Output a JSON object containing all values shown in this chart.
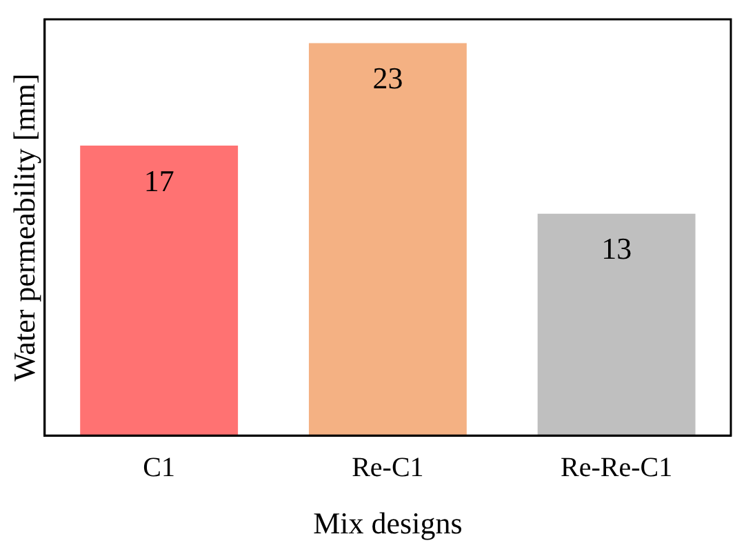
{
  "chart_data": {
    "type": "bar",
    "xlabel": "Mix designs",
    "ylabel": "Water permeability [mm]",
    "categories": [
      "C1",
      "Re-C1",
      "Re-Re-C1"
    ],
    "values": [
      17,
      23,
      13
    ],
    "colors": [
      "#ff7272",
      "#f4b183",
      "#bfbfbf"
    ],
    "ylim": [
      0,
      24.4
    ],
    "tick_labels": "x",
    "data_labels": true,
    "grid": false,
    "legend": false
  }
}
